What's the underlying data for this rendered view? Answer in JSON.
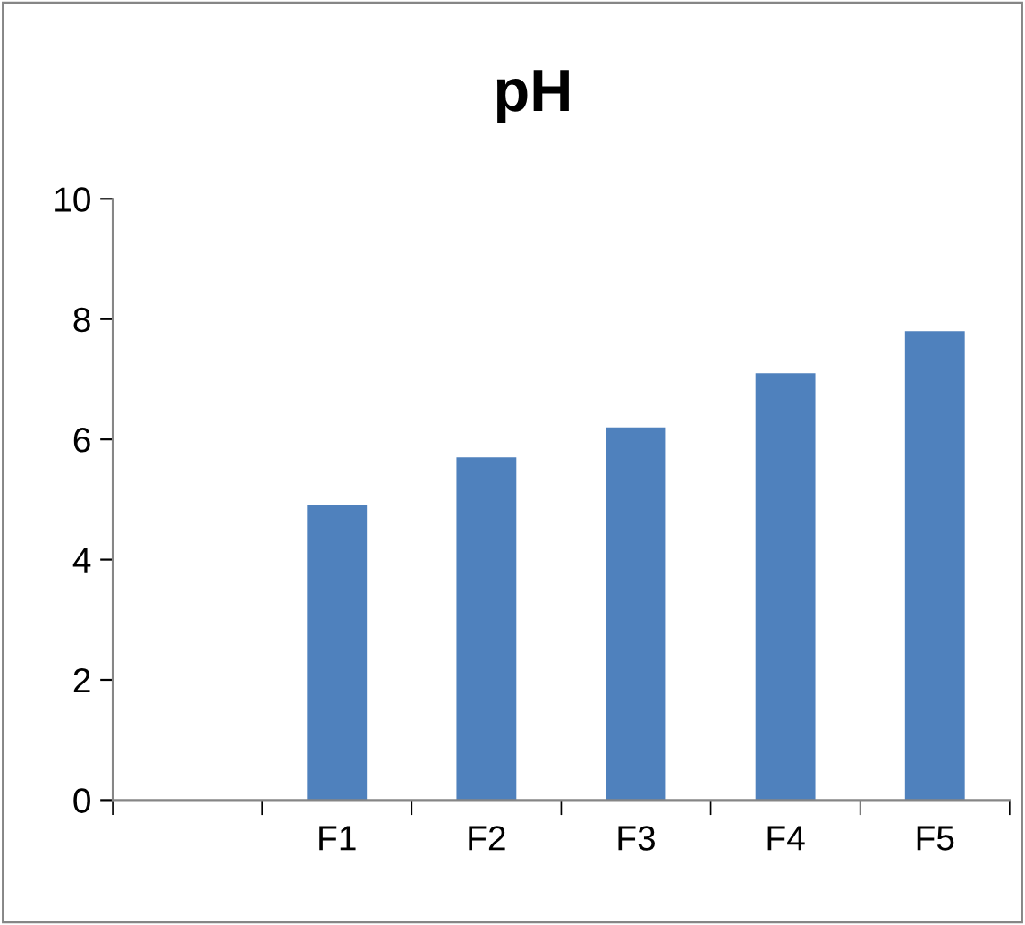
{
  "chart_data": {
    "type": "bar",
    "title": "pH",
    "categories": [
      null,
      "F1",
      "F2",
      "F3",
      "F4",
      "F5"
    ],
    "values": [
      null,
      4.9,
      5.7,
      6.2,
      7.1,
      7.8
    ],
    "color": "#4f81bd",
    "ylim": [
      0,
      10
    ],
    "yticks": [
      0,
      2,
      4,
      6,
      8,
      10
    ],
    "grid": false,
    "legend": false
  }
}
